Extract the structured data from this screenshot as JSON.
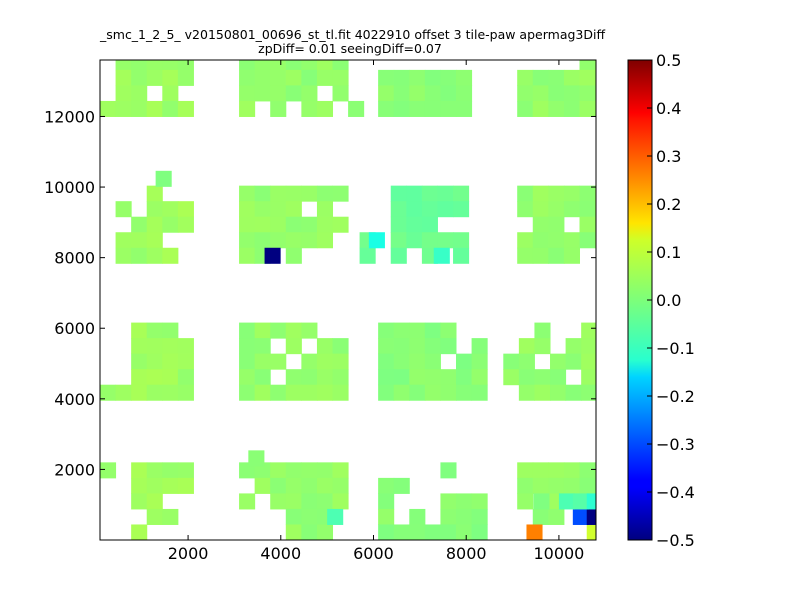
{
  "chart_data": {
    "type": "heatmap",
    "title": "_smc_1_2_5_ v20150801_00696_st_tl.fit 4022910 offset 3 tile-paw apermag3Diff",
    "subtitle": "zpDiff= 0.01 seeingDiff=0.07",
    "xlabel": "",
    "ylabel": "",
    "xlim": [
      100,
      10800
    ],
    "ylim": [
      0,
      13600
    ],
    "xticks": [
      "2000",
      "4000",
      "6000",
      "8000",
      "10000"
    ],
    "yticks": [
      "2000",
      "4000",
      "6000",
      "8000",
      "10000",
      "12000"
    ],
    "colorbar": {
      "range": [
        -0.5,
        0.5
      ],
      "ticks": [
        "0.5",
        "0.4",
        "0.3",
        "0.2",
        "0.1",
        "0.0",
        "−0.1",
        "−0.2",
        "−0.3",
        "−0.4",
        "−0.5"
      ],
      "colormap": "jet"
    },
    "grid": false,
    "cell_size": [
      336,
      440
    ],
    "blocks": [
      {
        "x0": 100,
        "cols": 6,
        "y0": 12000,
        "rows": 4,
        "value": 0.03,
        "cells": ".+++++|.+++++|.++.+.|++++++"
      },
      {
        "x0": 3100,
        "cols": 7,
        "y0": 12000,
        "rows": 4,
        "value": 0.02,
        "cells": "+++++++|+++++++|+++++.+|+.+.++.,"
      },
      {
        "x0": 6100,
        "cols": 6,
        "y0": 12000,
        "rows": 4,
        "value": 0.01,
        "cells": "......|++++++|++++++|++++++"
      },
      {
        "x0": 9100,
        "cols": 6,
        "y0": 12000,
        "rows": 4,
        "value": 0.02,
        "cells": "....++|++++++|++++++|++++++"
      },
      {
        "x0": 100,
        "cols": 6,
        "y0": 7840,
        "rows": 5,
        "value": 0.03,
        "cells": "...+..|.+.+++|..++++|.+++..|.++++.",
        "extra": [
          [
            1300,
            10020,
            0.0
          ]
        ]
      },
      {
        "x0": 3100,
        "cols": 7,
        "y0": 7840,
        "rows": 5,
        "value": 0.02,
        "cells": "+++++++|++++.+.|+++++++|++++++.|++.+..."
      },
      {
        "x0": 5700,
        "cols": 7,
        "y0": 7840,
        "rows": 5,
        "value": -0.02,
        "cells": "..+++++|..+++++|..+++..|+.+++++|+.+.+.+"
      },
      {
        "x0": 9100,
        "cols": 6,
        "y0": 7840,
        "rows": 5,
        "value": 0.02,
        "cells": "++++++|++++++|.++.+.|++++++|++++.."
      },
      {
        "x0": 100,
        "cols": 6,
        "y0": 3960,
        "rows": 5,
        "value": 0.03,
        "cells": "..+++.|..++++|..++++|..++++|++++++"
      },
      {
        "x0": 3100,
        "cols": 7,
        "y0": 3960,
        "rows": 5,
        "value": 0.02,
        "cells": "+++++..|++.+.++|+++.+++|++.++++|+++++++"
      },
      {
        "x0": 6100,
        "cols": 7,
        "y0": 3960,
        "rows": 5,
        "value": 0.01,
        "cells": "+++++..|+++++.+|++++.++|+++++++|+++++++"
      },
      {
        "x0": 8800,
        "cols": 6,
        "y0": 3960,
        "rows": 5,
        "value": 0.02,
        "cells": "..+..+|.++.++|++.+++|++++.+|.+++++"
      },
      {
        "x0": 100,
        "cols": 6,
        "y0": 0,
        "rows": 5,
        "value": 0.03,
        "cells": "+.++++|..++++|..++..|...++.|..+..."
      },
      {
        "x0": 3100,
        "cols": 7,
        "y0": 0,
        "rows": 5,
        "value": 0.02,
        "cells": "+++++++|.++++++|+.+++++|...+++.|...+++."
      },
      {
        "x0": 6100,
        "cols": 7,
        "y0": 0,
        "rows": 5,
        "value": 0.01,
        "cells": "....+..|++.....|+...+++|+.+.+++|+++++++"
      },
      {
        "x0": 9100,
        "cols": 6,
        "y0": 0,
        "rows": 5,
        "value": 0.02,
        "cells": "++++++|++++++|+.+.++|.++.++|......"
      }
    ],
    "highlights": [
      {
        "x": 3650,
        "y": 7840,
        "value": -0.5
      },
      {
        "x": 5900,
        "y": 8280,
        "value": -0.1
      },
      {
        "x": 7300,
        "y": 7840,
        "value": -0.07
      },
      {
        "x": 9300,
        "y": 0,
        "value": 0.25
      },
      {
        "x": 10600,
        "y": 0,
        "value": 0.08
      },
      {
        "x": 10300,
        "y": 440,
        "value": -0.3
      },
      {
        "x": 10600,
        "y": 440,
        "value": -0.5
      },
      {
        "x": 10000,
        "y": 880,
        "value": -0.05
      },
      {
        "x": 10300,
        "y": 880,
        "value": -0.04
      },
      {
        "x": 10600,
        "y": 880,
        "value": -0.08
      },
      {
        "x": 5000,
        "y": 440,
        "value": -0.05
      },
      {
        "x": 9450,
        "y": 880,
        "value": 0.0
      },
      {
        "x": 3300,
        "y": 2100,
        "value": 0.01
      }
    ]
  }
}
